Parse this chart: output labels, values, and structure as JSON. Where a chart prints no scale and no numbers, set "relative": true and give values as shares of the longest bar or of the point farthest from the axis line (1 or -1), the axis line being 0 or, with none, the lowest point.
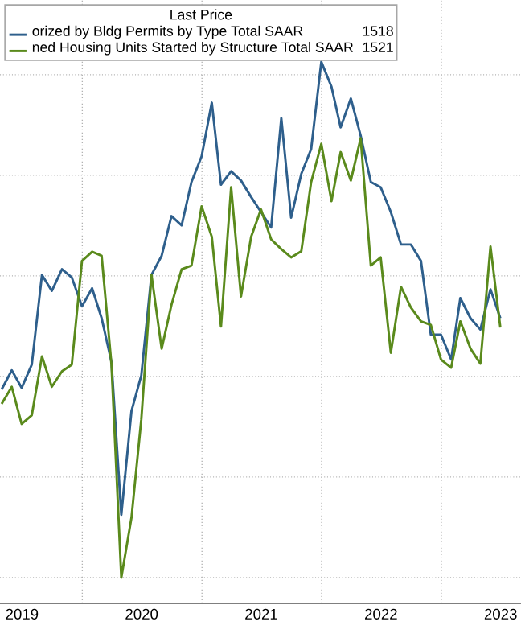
{
  "chart_data": {
    "type": "line",
    "relative": true,
    "legend_title": "Last Price",
    "legend": "top left",
    "grid": true,
    "x": [
      "2019-04-30",
      "2019-05-31",
      "2019-06-30",
      "2019-07-31",
      "2019-08-31",
      "2019-09-30",
      "2019-10-31",
      "2019-11-30",
      "2019-12-31",
      "2020-01-31",
      "2020-02-29",
      "2020-03-31",
      "2020-04-30",
      "2020-05-31",
      "2020-06-30",
      "2020-07-31",
      "2020-08-31",
      "2020-09-30",
      "2020-10-31",
      "2020-11-30",
      "2020-12-31",
      "2021-01-31",
      "2021-02-28",
      "2021-03-31",
      "2021-04-30",
      "2021-05-31",
      "2021-06-30",
      "2021-07-31",
      "2021-08-31",
      "2021-09-30",
      "2021-10-31",
      "2021-11-30",
      "2021-12-31",
      "2022-01-31",
      "2022-02-28",
      "2022-03-31",
      "2022-04-30",
      "2022-05-31",
      "2022-06-30",
      "2022-07-31",
      "2022-08-31",
      "2022-09-30",
      "2022-10-31",
      "2022-11-30",
      "2022-12-31",
      "2023-01-31",
      "2023-02-28",
      "2023-03-31",
      "2023-04-30",
      "2023-05-31",
      "2023-06-30"
    ],
    "series": [
      {
        "name": "orized by Bldg Permits by Type Total SAAR",
        "color": "#2e5f8c",
        "values": [
          0.365,
          0.402,
          0.368,
          0.413,
          0.587,
          0.556,
          0.598,
          0.582,
          0.526,
          0.561,
          0.503,
          0.418,
          0.122,
          0.323,
          0.392,
          0.587,
          0.624,
          0.701,
          0.683,
          0.767,
          0.817,
          0.921,
          0.762,
          0.788,
          0.77,
          0.738,
          0.709,
          0.679,
          0.891,
          0.698,
          0.783,
          0.831,
          1,
          0.952,
          0.873,
          0.929,
          0.857,
          0.767,
          0.757,
          0.709,
          0.646,
          0.646,
          0.614,
          0.471,
          0.471,
          0.423,
          0.542,
          0.503,
          0.481,
          0.559,
          0.503
        ]
      },
      {
        "name": "ned Housing Units Started by Structure Total SAAR",
        "color": "#5a8a1c",
        "values": [
          0.337,
          0.37,
          0.298,
          0.315,
          0.429,
          0.37,
          0.4,
          0.413,
          0.614,
          0.632,
          0.624,
          0.413,
          0,
          0.116,
          0.307,
          0.587,
          0.444,
          0.529,
          0.598,
          0.605,
          0.72,
          0.661,
          0.487,
          0.757,
          0.545,
          0.661,
          0.714,
          0.656,
          0.637,
          0.621,
          0.633,
          0.767,
          0.841,
          0.73,
          0.825,
          0.77,
          0.852,
          0.605,
          0.621,
          0.436,
          0.564,
          0.524,
          0.497,
          0.49,
          0.423,
          0.407,
          0.497,
          0.444,
          0.415,
          0.642,
          0.485
        ]
      }
    ],
    "annotations": [
      "1518",
      "1521"
    ],
    "xlim": [
      "2019-04-25",
      "2023-09-01"
    ],
    "xticks": [
      {
        "value": "2019-07-01",
        "label": "2019"
      },
      {
        "value": "2020-01-01",
        "label": null
      },
      {
        "value": "2020-07-01",
        "label": "2020"
      },
      {
        "value": "2021-01-01",
        "label": null
      },
      {
        "value": "2021-07-01",
        "label": "2021"
      },
      {
        "value": "2022-01-01",
        "label": null
      },
      {
        "value": "2022-07-01",
        "label": "2022"
      },
      {
        "value": "2023-01-01",
        "label": null
      },
      {
        "value": "2023-07-01",
        "label": "2023"
      }
    ]
  }
}
